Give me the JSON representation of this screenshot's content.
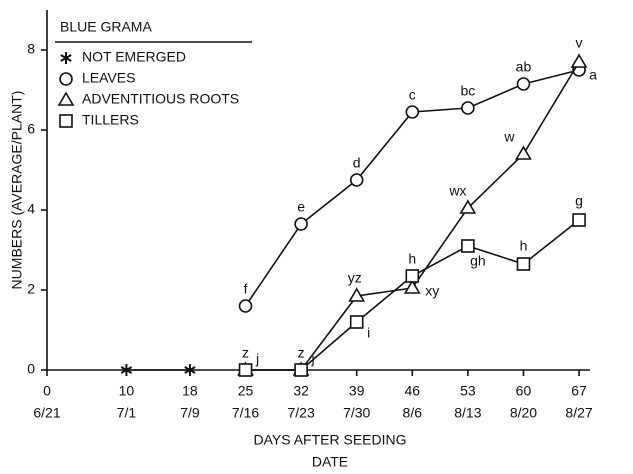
{
  "chart_data": {
    "type": "line",
    "legend_title": "BLUE GRAMA",
    "ylabel": "NUMBERS (AVERAGE/PLANT)",
    "xlabel": "DAYS AFTER SEEDING",
    "xlabel2": "DATE",
    "xlim": [
      0,
      68
    ],
    "ylim": [
      0,
      9
    ],
    "xticks": [
      0,
      10,
      18,
      25,
      32,
      39,
      46,
      53,
      60,
      67
    ],
    "xtick_dates": [
      "6/21",
      "7/1",
      "7/9",
      "7/16",
      "7/23",
      "7/30",
      "8/6",
      "8/13",
      "8/20",
      "8/27"
    ],
    "yticks": [
      0,
      2,
      4,
      6,
      8
    ],
    "grid": false,
    "legend": "upper left",
    "series": [
      {
        "name": "NOT EMERGED",
        "color": "#111111",
        "marker": "star",
        "x": [
          10,
          18
        ],
        "values": [
          0,
          0
        ]
      },
      {
        "name": "LEAVES",
        "color": "#111111",
        "marker": "circle",
        "x": [
          25,
          32,
          39,
          46,
          53,
          60,
          67
        ],
        "values": [
          1.6,
          3.65,
          4.75,
          6.45,
          6.55,
          7.15,
          7.5
        ],
        "labels": [
          "f",
          "e",
          "d",
          "c",
          "bc",
          "ab",
          "a"
        ]
      },
      {
        "name": "ADVENTITIOUS ROOTS",
        "color": "#111111",
        "marker": "triangle",
        "x": [
          25,
          32,
          39,
          46,
          53,
          60,
          67
        ],
        "values": [
          0,
          0,
          1.85,
          2.05,
          4.05,
          5.4,
          7.7
        ],
        "labels": [
          "z",
          "z",
          "yz",
          "xy",
          "wx",
          "w",
          "v"
        ]
      },
      {
        "name": "TILLERS",
        "color": "#111111",
        "marker": "square",
        "x": [
          25,
          32,
          39,
          46,
          53,
          60,
          67
        ],
        "values": [
          0,
          0,
          1.2,
          2.35,
          3.1,
          2.65,
          3.75
        ],
        "labels": [
          "j",
          "j",
          "i",
          "h",
          "gh",
          "h",
          "g"
        ]
      }
    ]
  }
}
